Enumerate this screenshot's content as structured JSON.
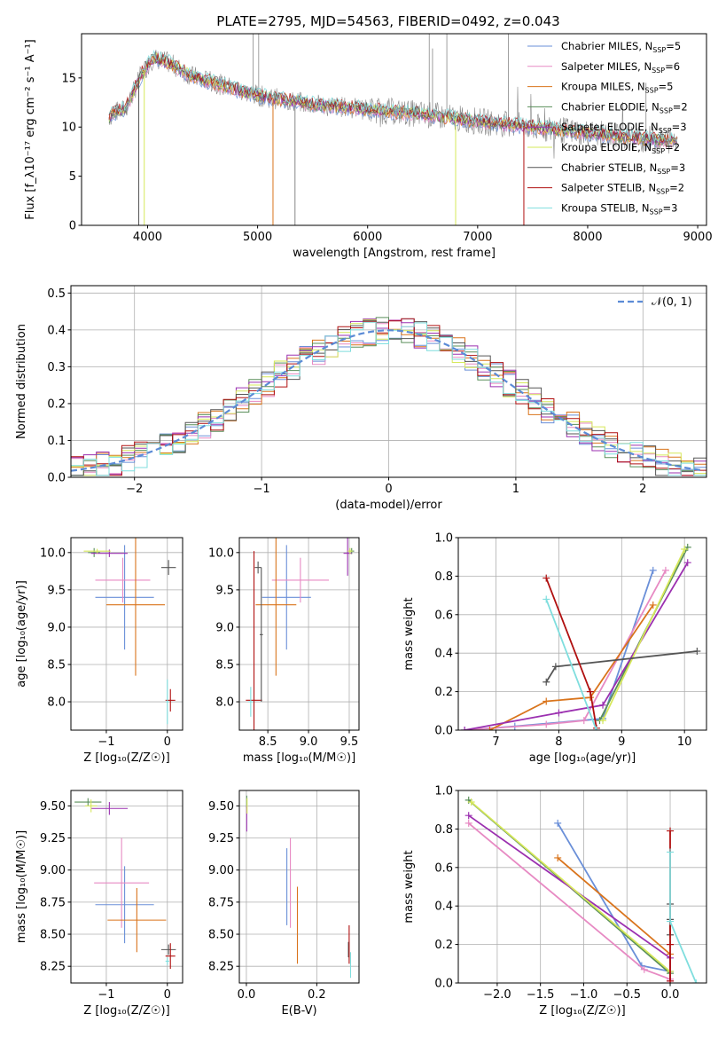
{
  "figure": {
    "title": "PLATE=2795, MJD=54563, FIBERID=0492, z=0.043"
  },
  "colors": {
    "chabrier_miles": "#6a8fd8",
    "salpeter_miles": "#e78ac3",
    "kroupa_miles": "#d9741c",
    "chabrier_elodie": "#5a8f5a",
    "salpeter_elodie": "#9b30b0",
    "kroupa_elodie": "#d6e85a",
    "chabrier_stelib": "#555555",
    "salpeter_stelib": "#b01010",
    "kroupa_stelib": "#7fdede",
    "data_spectrum": "#888888",
    "normal_curve": "#5b8bd6"
  },
  "chart_data": [
    {
      "type": "line",
      "id": "spectrum",
      "xlabel": "wavelength [Angstrom, rest frame]",
      "ylabel": "Flux [f_λ10⁻¹⁷ erg cm⁻² s⁻¹ A⁻¹]",
      "xlim": [
        3400,
        9080
      ],
      "ylim": [
        0,
        19.5
      ],
      "xticks": [
        4000,
        5000,
        6000,
        7000,
        8000,
        9000
      ],
      "yticks": [
        0,
        5,
        10,
        15
      ],
      "grid": false,
      "legend_position": "top-right",
      "legend": [
        {
          "model": "Chabrier MILES",
          "nssp": "5",
          "color_key": "chabrier_miles"
        },
        {
          "model": "Salpeter MILES",
          "nssp": "6",
          "color_key": "salpeter_miles"
        },
        {
          "model": "Kroupa MILES",
          "nssp": "5",
          "color_key": "kroupa_miles"
        },
        {
          "model": "Chabrier ELODIE",
          "nssp": "2",
          "color_key": "chabrier_elodie"
        },
        {
          "model": "Salpeter ELODIE",
          "nssp": "3",
          "color_key": "salpeter_elodie"
        },
        {
          "model": "Kroupa ELODIE",
          "nssp": "2",
          "color_key": "kroupa_elodie"
        },
        {
          "model": "Chabrier STELIB",
          "nssp": "3",
          "color_key": "chabrier_stelib"
        },
        {
          "model": "Salpeter STELIB",
          "nssp": "2",
          "color_key": "salpeter_stelib"
        },
        {
          "model": "Kroupa STELIB",
          "nssp": "3",
          "color_key": "kroupa_stelib"
        }
      ],
      "continuum": [
        [
          3650,
          11
        ],
        [
          3700,
          11.5
        ],
        [
          3800,
          11.8
        ],
        [
          3950,
          15.5
        ],
        [
          4050,
          17
        ],
        [
          4200,
          16.5
        ],
        [
          4400,
          15.2
        ],
        [
          4700,
          14.2
        ],
        [
          5000,
          13.2
        ],
        [
          5500,
          12.3
        ],
        [
          6000,
          11.8
        ],
        [
          6500,
          11.3
        ],
        [
          7000,
          10.6
        ],
        [
          7500,
          10.0
        ],
        [
          8000,
          9.4
        ],
        [
          8500,
          8.8
        ],
        [
          8800,
          8.6
        ]
      ],
      "drops": [
        {
          "x": 3920,
          "series": "chabrier_stelib"
        },
        {
          "x": 3970,
          "series": "kroupa_elodie"
        },
        {
          "x": 5140,
          "series": "kroupa_miles"
        },
        {
          "x": 5340,
          "series": "data_spectrum"
        },
        {
          "x": 6800,
          "series": "kroupa_elodie"
        },
        {
          "x": 7420,
          "series": "salpeter_stelib"
        }
      ],
      "spikes": [
        {
          "x": 4960,
          "y": 19.5
        },
        {
          "x": 5010,
          "y": 19.5
        },
        {
          "x": 6560,
          "y": 19.5
        },
        {
          "x": 6590,
          "y": 18.0
        },
        {
          "x": 6720,
          "y": 19.5
        },
        {
          "x": 7280,
          "y": 19.5
        },
        {
          "x": 8530,
          "y": 14.5
        }
      ]
    },
    {
      "type": "histogram",
      "id": "residuals",
      "xlabel": "(data-model)/error",
      "ylabel": "Normed distribution",
      "xlim": [
        -2.5,
        2.5
      ],
      "ylim": [
        0,
        0.52
      ],
      "xticks": [
        -2,
        -1,
        0,
        1,
        2
      ],
      "yticks": [
        0.0,
        0.1,
        0.2,
        0.3,
        0.4,
        0.5
      ],
      "grid": true,
      "bin_width": 0.1,
      "reference_curve": {
        "label": "𝒩(0, 1)",
        "mean": 0,
        "sigma": 1,
        "color_key": "normal_curve"
      },
      "legend_position": "top-right"
    },
    {
      "type": "errorbar",
      "id": "age_vs_metallicity",
      "xlabel": "Z [log₁₀(Z/Z☉)]",
      "ylabel": "age  [log₁₀(age/yr)]",
      "xlim": [
        -1.58,
        0.25
      ],
      "ylim": [
        7.62,
        10.2
      ],
      "xticks": [
        -1,
        0
      ],
      "yticks": [
        8.0,
        8.5,
        9.0,
        9.5,
        10.0
      ],
      "grid": true,
      "points": [
        {
          "series": "chabrier_miles",
          "x": -0.7,
          "xerr": 0.48,
          "y": 9.4,
          "yerr": 0.7
        },
        {
          "series": "salpeter_miles",
          "x": -0.73,
          "xerr": 0.45,
          "y": 9.63,
          "yerr": 0.3
        },
        {
          "series": "kroupa_miles",
          "x": -0.52,
          "xerr": 0.48,
          "y": 9.3,
          "yerr": 0.95
        },
        {
          "series": "chabrier_elodie",
          "x": -1.2,
          "xerr": 0.1,
          "y": 10.0,
          "yerr": 0.06
        },
        {
          "series": "salpeter_elodie",
          "x": -0.95,
          "xerr": 0.3,
          "y": 9.99,
          "yerr": 0.05
        },
        {
          "series": "kroupa_elodie",
          "x": -1.15,
          "xerr": 0.22,
          "y": 10.02,
          "yerr": 0.03
        },
        {
          "series": "chabrier_stelib",
          "x": 0.02,
          "xerr": 0.12,
          "y": 9.8,
          "yerr": 0.1
        },
        {
          "series": "salpeter_stelib",
          "x": 0.05,
          "xerr": 0.08,
          "y": 8.02,
          "yerr": 0.15
        },
        {
          "series": "kroupa_stelib",
          "x": 0.0,
          "xerr": 0.02,
          "y": 8.0,
          "yerr": 0.3
        }
      ]
    },
    {
      "type": "errorbar",
      "id": "age_vs_mass",
      "xlabel": "mass [log₁₀(M/M☉)]",
      "ylabel": "",
      "xlim": [
        8.15,
        9.62
      ],
      "ylim": [
        7.62,
        10.2
      ],
      "xticks": [
        8.5,
        9.0,
        9.5
      ],
      "yticks": [
        8.0,
        8.5,
        9.0,
        9.5,
        10.0
      ],
      "grid": true,
      "points": [
        {
          "series": "chabrier_miles",
          "x": 8.73,
          "xerr": 0.3,
          "y": 9.4,
          "yerr": 0.7
        },
        {
          "series": "salpeter_miles",
          "x": 8.9,
          "xerr": 0.35,
          "y": 9.63,
          "yerr": 0.3
        },
        {
          "series": "kroupa_miles",
          "x": 8.6,
          "xerr": 0.25,
          "y": 9.3,
          "yerr": 0.95
        },
        {
          "series": "chabrier_elodie",
          "x": 9.53,
          "xerr": 0.03,
          "y": 10.02,
          "yerr": 0.04
        },
        {
          "series": "salpeter_elodie",
          "x": 9.48,
          "xerr": 0.05,
          "y": 9.99,
          "yerr": 0.3
        },
        {
          "series": "kroupa_elodie",
          "x": 9.51,
          "xerr": 0.03,
          "y": 10.02,
          "yerr": 0.04
        },
        {
          "series": "chabrier_stelib",
          "x": 8.38,
          "xerr": 0.04,
          "y": 9.8,
          "yerr": 0.08
        },
        {
          "series": "salpeter_stelib",
          "x": 8.33,
          "xerr": 0.1,
          "y": 8.02,
          "yerr": 2.0
        },
        {
          "series": "kroupa_stelib",
          "x": 8.29,
          "xerr": 0.03,
          "y": 8.0,
          "yerr": 0.2
        },
        {
          "series": "chabrier_stelib",
          "x": 8.42,
          "xerr": 0.02,
          "y": 8.9,
          "yerr": 0.9
        }
      ]
    },
    {
      "type": "line",
      "id": "massweight_vs_age",
      "xlabel": "age  [log₁₀(age/yr)]",
      "ylabel": "mass weight",
      "xlim": [
        6.4,
        10.35
      ],
      "ylim": [
        0,
        1
      ],
      "xticks": [
        7,
        8,
        9,
        10
      ],
      "yticks": [
        0.0,
        0.2,
        0.4,
        0.6,
        0.8,
        1.0
      ],
      "grid": true,
      "series": [
        {
          "key": "chabrier_miles",
          "x": [
            6.5,
            7.3,
            8.7,
            9.5
          ],
          "y": [
            0.0,
            0.02,
            0.06,
            0.83
          ]
        },
        {
          "key": "salpeter_miles",
          "x": [
            6.5,
            7.8,
            8.4,
            9.7
          ],
          "y": [
            0.0,
            0.03,
            0.05,
            0.83
          ]
        },
        {
          "key": "kroupa_miles",
          "x": [
            6.9,
            7.8,
            8.5,
            9.5
          ],
          "y": [
            0.0,
            0.15,
            0.17,
            0.65
          ]
        },
        {
          "key": "chabrier_elodie",
          "x": [
            8.65,
            10.05
          ],
          "y": [
            0.05,
            0.95
          ]
        },
        {
          "key": "salpeter_elodie",
          "x": [
            6.5,
            8.0,
            8.7,
            10.05
          ],
          "y": [
            0.0,
            0.09,
            0.13,
            0.87
          ]
        },
        {
          "key": "kroupa_elodie",
          "x": [
            8.7,
            10.0
          ],
          "y": [
            0.05,
            0.94
          ]
        },
        {
          "key": "chabrier_stelib",
          "x": [
            7.8,
            7.95,
            10.2
          ],
          "y": [
            0.25,
            0.33,
            0.41
          ]
        },
        {
          "key": "salpeter_stelib",
          "x": [
            7.8,
            8.5,
            8.6
          ],
          "y": [
            0.79,
            0.2,
            0.01
          ]
        },
        {
          "key": "kroupa_stelib",
          "x": [
            7.8,
            8.6
          ],
          "y": [
            0.68,
            0.0
          ]
        }
      ]
    },
    {
      "type": "errorbar",
      "id": "mass_vs_metallicity",
      "xlabel": "Z [log₁₀(Z/Z☉)]",
      "ylabel": "mass [log₁₀(M/M☉)]",
      "xlim": [
        -1.58,
        0.25
      ],
      "ylim": [
        8.12,
        9.62
      ],
      "xticks": [
        -1,
        0
      ],
      "yticks": [
        8.25,
        8.5,
        8.75,
        9.0,
        9.25,
        9.5
      ],
      "grid": true,
      "points": [
        {
          "series": "chabrier_miles",
          "x": -0.7,
          "xerr": 0.48,
          "y": 8.73,
          "yerr": 0.3
        },
        {
          "series": "salpeter_miles",
          "x": -0.75,
          "xerr": 0.45,
          "y": 8.9,
          "yerr": 0.35
        },
        {
          "series": "kroupa_miles",
          "x": -0.5,
          "xerr": 0.48,
          "y": 8.61,
          "yerr": 0.25
        },
        {
          "series": "chabrier_elodie",
          "x": -1.3,
          "xerr": 0.22,
          "y": 9.53,
          "yerr": 0.03
        },
        {
          "series": "salpeter_elodie",
          "x": -0.95,
          "xerr": 0.3,
          "y": 9.48,
          "yerr": 0.05
        },
        {
          "series": "kroupa_elodie",
          "x": -1.25,
          "xerr": 0.1,
          "y": 9.5,
          "yerr": 0.05
        },
        {
          "series": "chabrier_stelib",
          "x": 0.02,
          "xerr": 0.12,
          "y": 8.38,
          "yerr": 0.04
        },
        {
          "series": "salpeter_stelib",
          "x": 0.05,
          "xerr": 0.08,
          "y": 8.33,
          "yerr": 0.1
        },
        {
          "series": "kroupa_stelib",
          "x": 0.0,
          "xerr": 0.03,
          "y": 8.29,
          "yerr": 0.03
        }
      ]
    },
    {
      "type": "errorbar",
      "id": "mass_vs_ebv",
      "xlabel": "E(B-V)",
      "ylabel": "",
      "xlim": [
        -0.02,
        0.32
      ],
      "ylim": [
        8.12,
        9.62
      ],
      "xticks": [
        0.0,
        0.2
      ],
      "yticks": [
        8.25,
        8.5,
        8.75,
        9.0,
        9.25,
        9.5
      ],
      "grid": true,
      "points": [
        {
          "series": "chabrier_miles",
          "x": 0.115,
          "xerr": 0,
          "y": 8.87,
          "yerr": 0.3
        },
        {
          "series": "salpeter_miles",
          "x": 0.125,
          "xerr": 0,
          "y": 8.9,
          "yerr": 0.35
        },
        {
          "series": "kroupa_miles",
          "x": 0.145,
          "xerr": 0,
          "y": 8.57,
          "yerr": 0.3
        },
        {
          "series": "chabrier_elodie",
          "x": 0.001,
          "xerr": 0,
          "y": 9.53,
          "yerr": 0.05
        },
        {
          "series": "salpeter_elodie",
          "x": 0.001,
          "xerr": 0,
          "y": 9.4,
          "yerr": 0.1
        },
        {
          "series": "kroupa_elodie",
          "x": 0.002,
          "xerr": 0,
          "y": 9.5,
          "yerr": 0.06
        },
        {
          "series": "chabrier_stelib",
          "x": 0.29,
          "xerr": 0,
          "y": 8.38,
          "yerr": 0.06
        },
        {
          "series": "salpeter_stelib",
          "x": 0.292,
          "xerr": 0,
          "y": 8.42,
          "yerr": 0.15
        },
        {
          "series": "kroupa_stelib",
          "x": 0.296,
          "xerr": 0,
          "y": 8.26,
          "yerr": 0.1
        }
      ]
    },
    {
      "type": "line",
      "id": "massweight_vs_metallicity",
      "xlabel": "Z [log₁₀(Z/Z☉)]",
      "ylabel": "mass weight",
      "xlim": [
        -2.45,
        0.42
      ],
      "ylim": [
        0,
        1
      ],
      "xticks": [
        -2.0,
        -1.5,
        -1.0,
        -0.5,
        0.0
      ],
      "yticks": [
        0.0,
        0.2,
        0.4,
        0.6,
        0.8,
        1.0
      ],
      "grid": true,
      "series": [
        {
          "key": "chabrier_miles",
          "x": [
            -1.3,
            -0.33,
            0.0
          ],
          "y": [
            0.83,
            0.09,
            0.06
          ]
        },
        {
          "key": "salpeter_miles",
          "x": [
            -2.33,
            -0.3,
            0.0
          ],
          "y": [
            0.83,
            0.07,
            0.02
          ]
        },
        {
          "key": "kroupa_miles",
          "x": [
            -1.3,
            0.0,
            0.0
          ],
          "y": [
            0.65,
            0.15,
            0.01
          ]
        },
        {
          "key": "chabrier_elodie",
          "x": [
            -2.33,
            0.0
          ],
          "y": [
            0.95,
            0.05
          ]
        },
        {
          "key": "salpeter_elodie",
          "x": [
            -2.33,
            0.0,
            0.0
          ],
          "y": [
            0.87,
            0.13,
            0.01
          ]
        },
        {
          "key": "kroupa_elodie",
          "x": [
            -2.3,
            0.0
          ],
          "y": [
            0.94,
            0.06
          ]
        },
        {
          "key": "chabrier_stelib",
          "x": [
            0.0,
            0.0,
            0.0
          ],
          "y": [
            0.41,
            0.33,
            0.25
          ]
        },
        {
          "key": "salpeter_stelib",
          "x": [
            0.0,
            0.0,
            0.0
          ],
          "y": [
            0.79,
            0.2,
            0.01
          ]
        },
        {
          "key": "kroupa_stelib",
          "x": [
            0.0,
            0.0,
            0.3
          ],
          "y": [
            0.68,
            0.32,
            0.0
          ]
        }
      ]
    }
  ]
}
